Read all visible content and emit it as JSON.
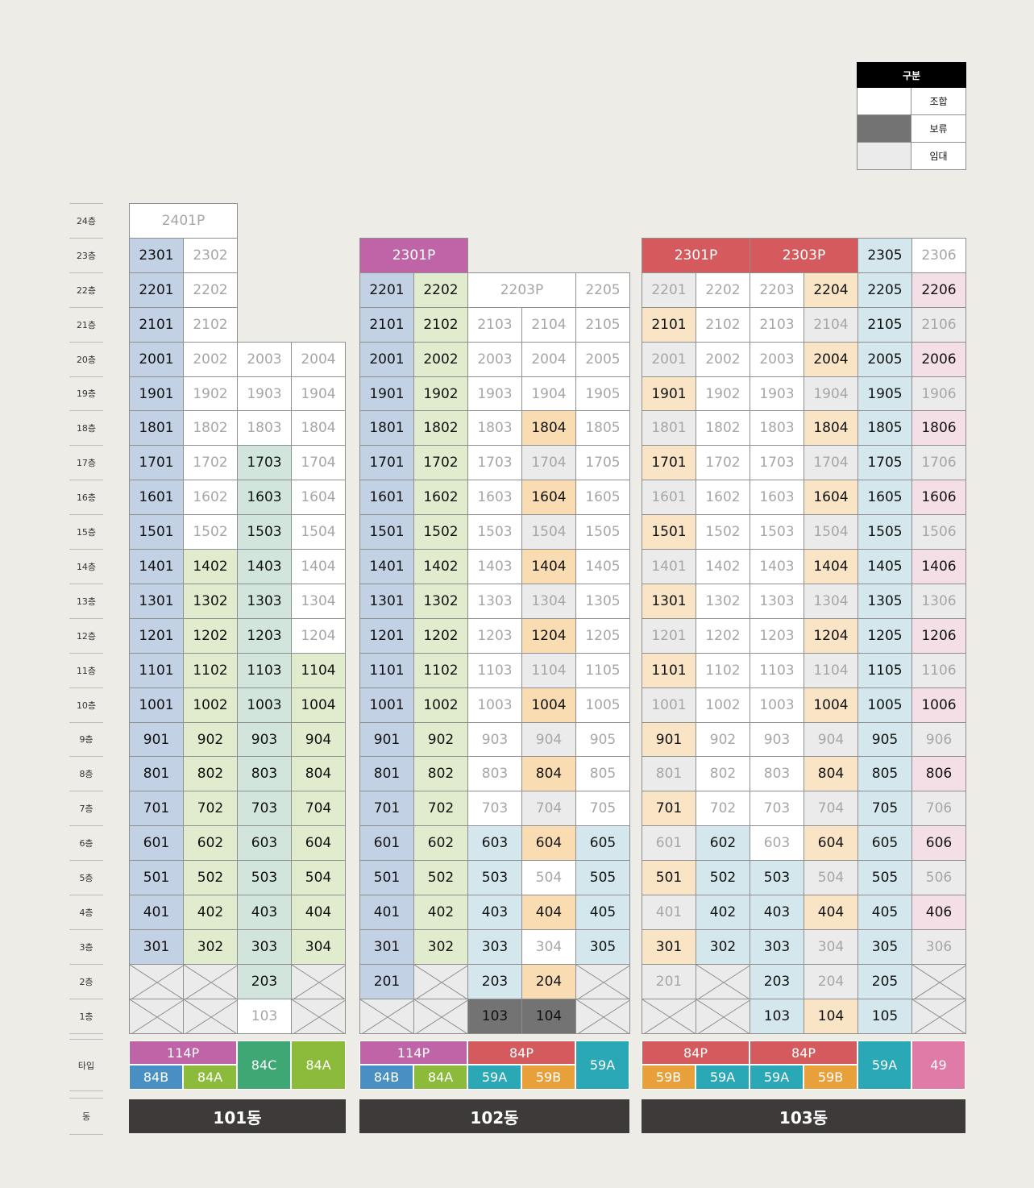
{
  "legend": {
    "title": "구분",
    "items": [
      {
        "label": "조합",
        "color": "#ffffff"
      },
      {
        "label": "보류",
        "color": "#737373"
      },
      {
        "label": "임대",
        "color": "#ebebeb"
      }
    ]
  },
  "floor_labels": [
    "24층",
    "23층",
    "22층",
    "21층",
    "20층",
    "19층",
    "18층",
    "17층",
    "16층",
    "15층",
    "14층",
    "13층",
    "12층",
    "11층",
    "10층",
    "9층",
    "8층",
    "7층",
    "6층",
    "5층",
    "4층",
    "3층",
    "2층",
    "1층"
  ],
  "row_labels": {
    "type": "타입",
    "dong": "동"
  },
  "colors": {
    "blue": "#c2d1e4",
    "green": "#e1ebcd",
    "teal": "#d1e5dd",
    "cyan": "#d3e7ec",
    "peach": "#f9e4c6",
    "orange": "#f9dcb2",
    "pink": "#f5dfe7",
    "gray": "#ebebeb",
    "dark": "#737373",
    "white": "#ffffff"
  },
  "buildings": [
    {
      "name": "101동",
      "columns": [
        {
          "top": "2401P",
          "top_dim": true,
          "color": "blue",
          "units": [
            "2301",
            "2201",
            "2101",
            "2001",
            "1901",
            "1801",
            "1701",
            "1601",
            "1501",
            "1401",
            "1301",
            "1201",
            "1101",
            "1001",
            "901",
            "801",
            "701",
            "601",
            "501",
            "401",
            "301",
            "X",
            "X"
          ]
        },
        {
          "color": "mix",
          "units": [
            "2302",
            "2202",
            "2102",
            "2002",
            "1902",
            "1802",
            "1702",
            "1602",
            "1502",
            "1402",
            "1302",
            "1202",
            "1102",
            "1002",
            "902",
            "802",
            "702",
            "602",
            "502",
            "402",
            "302",
            "X",
            "X"
          ]
        },
        {
          "units": [
            "2003",
            "1903",
            "1803",
            "1703",
            "1603",
            "1503",
            "1403",
            "1303",
            "1203",
            "1103",
            "1003",
            "903",
            "803",
            "703",
            "603",
            "503",
            "403",
            "303",
            "203",
            "103"
          ]
        },
        {
          "units": [
            "2004",
            "1904",
            "1804",
            "1704",
            "1604",
            "1504",
            "1404",
            "1304",
            "1204",
            "1104",
            "1004",
            "904",
            "804",
            "704",
            "604",
            "504",
            "404",
            "304",
            "X",
            "X"
          ]
        }
      ]
    },
    {
      "name": "102동",
      "columns": [
        {
          "top": "2301P",
          "units": [
            "2201",
            "2101",
            "2001",
            "1901",
            "1801",
            "1701",
            "1601",
            "1501",
            "1401",
            "1301",
            "1201",
            "1101",
            "1001",
            "901",
            "801",
            "701",
            "601",
            "501",
            "401",
            "301",
            "201",
            "X"
          ]
        },
        {
          "units": [
            "2202",
            "2102",
            "2002",
            "1902",
            "1802",
            "1702",
            "1602",
            "1502",
            "1402",
            "1302",
            "1202",
            "1102",
            "1002",
            "902",
            "802",
            "702",
            "602",
            "502",
            "402",
            "302",
            "X",
            "X"
          ]
        },
        {
          "merged_top": "2203P",
          "units": [
            "2103",
            "2003",
            "1903",
            "1803",
            "1703",
            "1603",
            "1503",
            "1403",
            "1303",
            "1203",
            "1103",
            "1003",
            "903",
            "803",
            "703",
            "603",
            "503",
            "403",
            "303",
            "203",
            "103"
          ]
        },
        {
          "units": [
            "2104",
            "2004",
            "1904",
            "1804",
            "1704",
            "1604",
            "1504",
            "1404",
            "1304",
            "1204",
            "1104",
            "1004",
            "904",
            "804",
            "704",
            "604",
            "504",
            "404",
            "304",
            "204",
            "104"
          ]
        },
        {
          "units": [
            "2205",
            "2105",
            "2005",
            "1905",
            "1805",
            "1705",
            "1605",
            "1505",
            "1405",
            "1305",
            "1205",
            "1105",
            "1005",
            "905",
            "805",
            "705",
            "605",
            "505",
            "405",
            "305",
            "X",
            "X"
          ]
        }
      ]
    },
    {
      "name": "103동",
      "columns": [
        {
          "merged_top": "2301P",
          "units": [
            "2201",
            "2101",
            "2001",
            "1901",
            "1801",
            "1701",
            "1601",
            "1501",
            "1401",
            "1301",
            "1201",
            "1101",
            "1001",
            "901",
            "801",
            "701",
            "601",
            "501",
            "401",
            "301",
            "201",
            "X"
          ]
        },
        {
          "units": [
            "2202",
            "2102",
            "2002",
            "1902",
            "1802",
            "1702",
            "1602",
            "1502",
            "1402",
            "1302",
            "1202",
            "1102",
            "1002",
            "902",
            "802",
            "702",
            "602",
            "502",
            "402",
            "302",
            "X",
            "X"
          ]
        },
        {
          "merged_top": "2303P",
          "units": [
            "2203",
            "2103",
            "2003",
            "1903",
            "1803",
            "1703",
            "1603",
            "1503",
            "1403",
            "1303",
            "1203",
            "1103",
            "1003",
            "903",
            "803",
            "703",
            "603",
            "503",
            "403",
            "303",
            "203",
            "103"
          ]
        },
        {
          "units": [
            "2204",
            "2104",
            "2004",
            "1904",
            "1804",
            "1704",
            "1604",
            "1504",
            "1404",
            "1304",
            "1204",
            "1104",
            "1004",
            "904",
            "804",
            "704",
            "604",
            "504",
            "404",
            "304",
            "204",
            "104"
          ]
        },
        {
          "units": [
            "2305",
            "2205",
            "2105",
            "2005",
            "1905",
            "1805",
            "1705",
            "1605",
            "1505",
            "1405",
            "1305",
            "1205",
            "1105",
            "1005",
            "905",
            "805",
            "705",
            "605",
            "505",
            "405",
            "305",
            "205",
            "105"
          ]
        },
        {
          "units": [
            "2306",
            "2206",
            "2106",
            "2006",
            "1906",
            "1806",
            "1706",
            "1606",
            "1506",
            "1406",
            "1306",
            "1206",
            "1106",
            "1006",
            "906",
            "806",
            "706",
            "606",
            "506",
            "406",
            "306",
            "X",
            "X"
          ]
        }
      ]
    }
  ],
  "types": {
    "b101": [
      {
        "label": "114P",
        "color": "#c064a8"
      },
      {
        "label": "84B",
        "color": "#4a8fc3"
      },
      {
        "label": "84A",
        "color": "#8cbb3c"
      },
      {
        "label": "84C",
        "color": "#3ea774"
      },
      {
        "label": "84A",
        "color": "#8cbb3c"
      }
    ],
    "b102": [
      {
        "label": "114P",
        "color": "#c064a8"
      },
      {
        "label": "84P",
        "color": "#d55a5e"
      },
      {
        "label": "84B",
        "color": "#4a8fc3"
      },
      {
        "label": "84A",
        "color": "#8cbb3c"
      },
      {
        "label": "59A",
        "color": "#2aa8b6"
      },
      {
        "label": "59B",
        "color": "#e8a03a"
      },
      {
        "label": "59A",
        "color": "#2aa8b6"
      }
    ],
    "b103": [
      {
        "label": "84P",
        "color": "#d55a5e"
      },
      {
        "label": "84P",
        "color": "#d55a5e"
      },
      {
        "label": "59B",
        "color": "#e8a03a"
      },
      {
        "label": "59A",
        "color": "#2aa8b6"
      },
      {
        "label": "59A",
        "color": "#2aa8b6"
      },
      {
        "label": "59B",
        "color": "#e8a03a"
      },
      {
        "label": "59A",
        "color": "#2aa8b6"
      },
      {
        "label": "49",
        "color": "#e07ba7"
      }
    ]
  }
}
